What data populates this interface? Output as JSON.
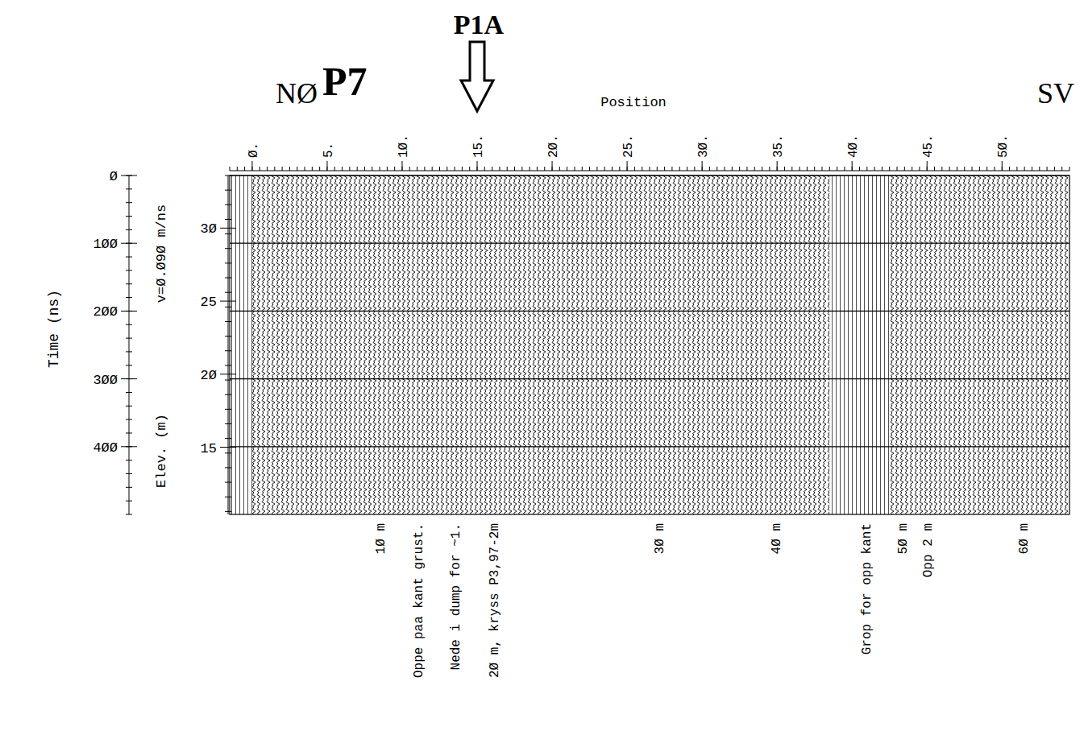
{
  "chart_data": {
    "type": "radargram",
    "title": "P7",
    "direction_labels": {
      "left": "NØ",
      "right": "SV"
    },
    "pointer": {
      "label": "P1A",
      "position": 15
    },
    "x_label": "Position",
    "xlim": [
      -1.5,
      54.5
    ],
    "xticks": [
      {
        "value": 0,
        "label": "Ø."
      },
      {
        "value": 5,
        "label": "5."
      },
      {
        "value": 10,
        "label": "1Ø."
      },
      {
        "value": 15,
        "label": "15."
      },
      {
        "value": 20,
        "label": "2Ø."
      },
      {
        "value": 25,
        "label": "25."
      },
      {
        "value": 30,
        "label": "3Ø."
      },
      {
        "value": 35,
        "label": "35."
      },
      {
        "value": 40,
        "label": "4Ø."
      },
      {
        "value": 45,
        "label": "45."
      },
      {
        "value": 50,
        "label": "5Ø."
      }
    ],
    "y_label": "Time (ns)",
    "ylim": [
      0,
      500
    ],
    "yticks": [
      {
        "value": 0,
        "label": "Ø"
      },
      {
        "value": 100,
        "label": "1ØØ"
      },
      {
        "value": 200,
        "label": "2ØØ"
      },
      {
        "value": 300,
        "label": "3ØØ"
      },
      {
        "value": 400,
        "label": "4ØØ"
      }
    ],
    "y2_label": "Elev. (m)",
    "y2lim": [
      33.6,
      10.4
    ],
    "y2ticks": [
      {
        "value": 30,
        "label": "3Ø"
      },
      25,
      {
        "value": 20,
        "label": "2Ø"
      },
      15
    ],
    "velocity_label": "v=Ø.Ø9Ø m/ns",
    "grid": true,
    "data_segments": [
      [
        0,
        38.5
      ],
      [
        42.5,
        54.5
      ]
    ],
    "annotations": [
      {
        "x": 8.5,
        "text": "1Ø m"
      },
      {
        "x": 11,
        "text": "Oppe paa kant grust."
      },
      {
        "x": 13.5,
        "text": "Nede i dump for ~1."
      },
      {
        "x": 16.1,
        "text": "2Ø m, kryss P3,97-2m"
      },
      {
        "x": 27.1,
        "text": "3Ø m"
      },
      {
        "x": 34.9,
        "text": "4Ø m"
      },
      {
        "x": 40.9,
        "text": "Grop for opp kant"
      },
      {
        "x": 43.3,
        "text": "5Ø m"
      },
      {
        "x": 45,
        "text": "Opp 2 m"
      },
      {
        "x": 51.4,
        "text": "6Ø m"
      }
    ]
  }
}
